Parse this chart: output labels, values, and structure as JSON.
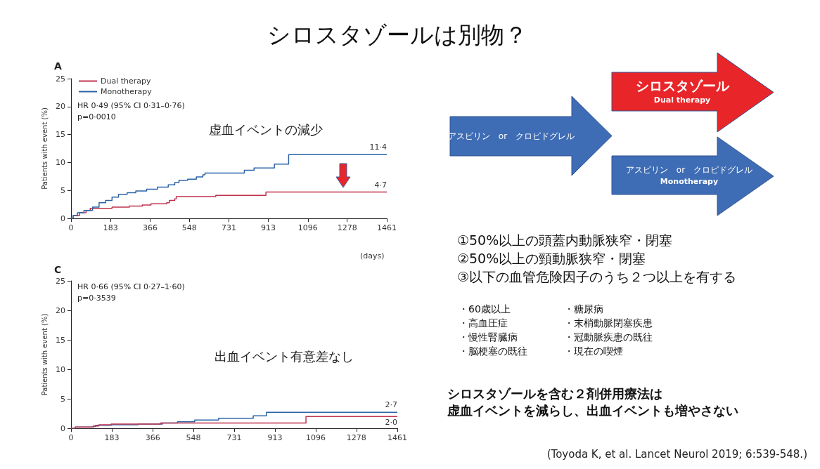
{
  "chart_data": [
    {
      "type": "other",
      "title": "シロスタゾールは別物？",
      "annotations": [
        "アスピリン　or　クロピドグレル",
        "シロスタゾール",
        "Dual therapy",
        "アスピリン　or　クロピドグレル",
        "Monotherapy",
        "①50%以上の頭蓋内動脈狭窄・閉塞",
        "②50%以上の頸動脈狭窄・閉塞",
        "③以下の血管危険因子のうち２つ以上を有する",
        "・60歳以上",
        "・糖尿病",
        "・高血圧症",
        "・末梢動脈閉塞疾患",
        "・慢性腎臓病",
        "・冠動脈疾患の既往",
        "・脳梗塞の既往",
        "・現在の喫煙",
        "シロスタゾールを含む２剤併用療法は",
        "虚血イベントを減らし、出血イベントも増やさない",
        "(Toyoda K, et al. Lancet Neurol 2019; 6:539-548.)"
      ]
    },
    {
      "type": "step",
      "title": "A",
      "xlabel": "(days)",
      "ylabel": "Patients with event (%)",
      "xlim": [
        0,
        1461
      ],
      "xticks": [
        0,
        183,
        366,
        548,
        731,
        913,
        1096,
        1278,
        1461
      ],
      "ylim": [
        0,
        25
      ],
      "yticks": [
        0,
        5,
        10,
        15,
        20,
        25
      ],
      "grid": false,
      "legend": "top left",
      "marker": "none",
      "series": [
        {
          "name": "Dual therapy",
          "color": "#c0334d",
          "x": [
            0,
            10,
            40,
            70,
            89,
            190,
            270,
            330,
            370,
            443,
            455,
            480,
            487,
            670,
            902,
            1461
          ],
          "values": [
            0,
            0.5,
            1,
            1.4,
            1.8,
            2,
            2.2,
            2.4,
            2.6,
            2.8,
            3.2,
            3.5,
            3.9,
            4.1,
            4.7,
            4.7
          ]
        },
        {
          "name": "Monotherapy",
          "color": "#2b64a6",
          "x": [
            0,
            10,
            30,
            60,
            100,
            130,
            160,
            190,
            220,
            260,
            300,
            350,
            400,
            450,
            480,
            500,
            540,
            580,
            610,
            620,
            802,
            847,
            941,
            1007,
            1461
          ],
          "values": [
            0,
            0.5,
            1,
            1.4,
            2,
            2.8,
            3.2,
            3.8,
            4.3,
            4.6,
            4.9,
            5.2,
            5.6,
            6,
            6.4,
            6.8,
            7,
            7.4,
            7.8,
            8.1,
            8.6,
            9,
            9.7,
            11.4,
            11.4
          ]
        }
      ],
      "annotations": [
        "HR 0·49 (95% CI 0·31–0·76)",
        "p=0·0010",
        "虚血イベントの減少",
        {
          "text": "11·4",
          "y": 11.4
        },
        {
          "text": "4·7",
          "y": 4.7
        }
      ]
    },
    {
      "type": "step",
      "title": "C",
      "ylabel": "Patients with event (%)",
      "xlim": [
        0,
        1461
      ],
      "xticks": [
        0,
        183,
        366,
        548,
        731,
        913,
        1096,
        1278,
        1461
      ],
      "ylim": [
        0,
        25
      ],
      "yticks": [
        0,
        5,
        10,
        15,
        20,
        25
      ],
      "grid": false,
      "marker": "none",
      "series": [
        {
          "color": "#2b64a6",
          "x": [
            0,
            20,
            99,
            110,
            180,
            300,
            410,
            477,
            554,
            661,
            816,
            875,
            1461
          ],
          "values": [
            0,
            0.2,
            0.3,
            0.5,
            0.6,
            0.7,
            0.9,
            1.1,
            1.4,
            1.7,
            2.1,
            2.7,
            2.7
          ]
        },
        {
          "color": "#c0334d",
          "x": [
            0,
            20,
            100,
            125,
            180,
            400,
            1052,
            1461
          ],
          "values": [
            0,
            0.2,
            0.4,
            0.6,
            0.7,
            0.9,
            2,
            2
          ]
        }
      ],
      "annotations": [
        "HR 0·66 (95% CI 0·27–1·60)",
        "p=0·3539",
        "出血イベント有意差なし",
        {
          "text": "2·7",
          "y": 2.7
        },
        {
          "text": "2·0",
          "y": 2
        }
      ]
    }
  ]
}
